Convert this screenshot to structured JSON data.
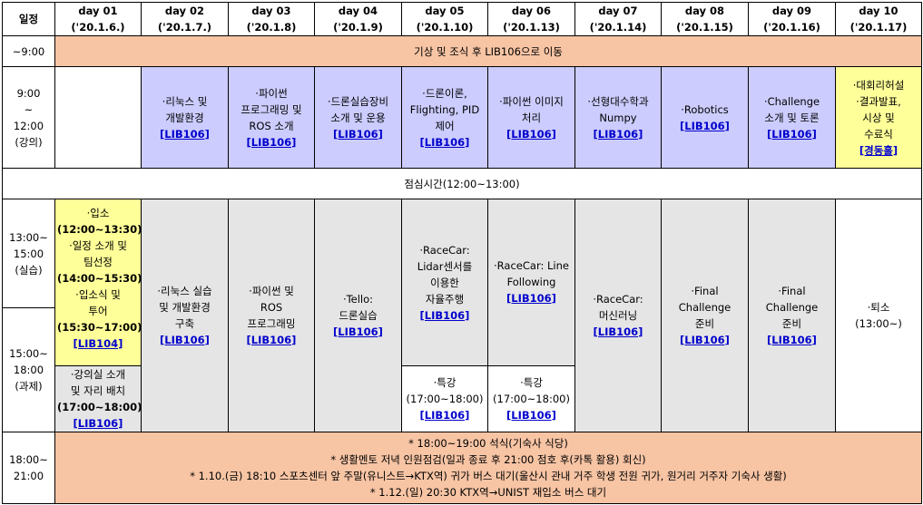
{
  "corner": "일정",
  "days": [
    {
      "day": "day 01",
      "date": "('20.1.6.)"
    },
    {
      "day": "day 02",
      "date": "('20.1.7.)"
    },
    {
      "day": "day 03",
      "date": "('20.1.8)"
    },
    {
      "day": "day 04",
      "date": "('20.1.9)"
    },
    {
      "day": "day 05",
      "date": "('20.1.10)"
    },
    {
      "day": "day 06",
      "date": "('20.1.13)"
    },
    {
      "day": "day 07",
      "date": "('20.1.14)"
    },
    {
      "day": "day 08",
      "date": "('20.1.15)"
    },
    {
      "day": "day 09",
      "date": "('20.1.16)"
    },
    {
      "day": "day 10",
      "date": "('20.1.17)"
    }
  ],
  "rows": {
    "wake": {
      "time": "~9:00",
      "text": "기상 및 조식 후 LIB106으로 이동"
    },
    "lecture": {
      "time": [
        "9:00",
        "~",
        "12:00",
        "(강의)"
      ],
      "cells": [
        {
          "lines": [],
          "room": ""
        },
        {
          "lines": [
            "·리눅스 및",
            "개발환경"
          ],
          "room": "[LIB106]"
        },
        {
          "lines": [
            "·파이썬",
            "프로그래밍 및",
            "ROS 소개"
          ],
          "room": "[LIB106]"
        },
        {
          "lines": [
            "·드론실습장비",
            "소개 및 운용"
          ],
          "room": "[LIB106]"
        },
        {
          "lines": [
            "·드론이론,",
            "Flighting, PID",
            "제어"
          ],
          "room": "[LIB106]"
        },
        {
          "lines": [
            "·파이썬 이미지",
            "처리"
          ],
          "room": "[LIB106]"
        },
        {
          "lines": [
            "·선형대수학과",
            "Numpy"
          ],
          "room": "[LIB106]"
        },
        {
          "lines": [
            "·Robotics"
          ],
          "room": "[LIB106]"
        },
        {
          "lines": [
            "·Challenge",
            "소개 및 토론"
          ],
          "room": "[LIB106]"
        },
        {
          "lines": [
            "·대회리허설",
            "·결과발표,",
            "시상 및",
            "수료식"
          ],
          "room": "[경동홀]"
        }
      ]
    },
    "lunch": {
      "text": "점심시간(12:00~13:00)"
    },
    "practice": {
      "time": [
        "13:00~",
        "15:00",
        "(실습)"
      ]
    },
    "homework": {
      "time": [
        "15:00~",
        "18:00",
        "(과제)"
      ]
    },
    "day01_practice": {
      "lines": [
        "·입소",
        "(12:00~13:30)",
        "·일정 소개 및",
        "팀선정",
        "(14:00~15:30)",
        "·입소식 및",
        "투어",
        "(15:30~17:00)"
      ],
      "room": "[LIB104]"
    },
    "day01_homework": {
      "lines": [
        "·강의실 소개",
        "및 자리 배치",
        "(17:00~18:00)"
      ],
      "room": "[LIB106]"
    },
    "afternoon": [
      {
        "lines": [
          "·리눅스 실습",
          "및 개발환경",
          "구축"
        ],
        "room": "[LIB106]"
      },
      {
        "lines": [
          "·파이썬 및",
          "ROS",
          "프로그래밍"
        ],
        "room": "[LIB106]"
      },
      {
        "lines": [
          "·Tello:",
          "드론실습"
        ],
        "room": "[LIB106]"
      },
      {
        "lines": [
          "·RaceCar:",
          "Lidar센서를",
          "이용한",
          "자율주행"
        ],
        "room": "[LIB106]"
      },
      {
        "lines": [
          "·RaceCar: Line",
          "Following"
        ],
        "room": "[LIB106]"
      },
      {
        "lines": [
          "·RaceCar:",
          "머신러닝"
        ],
        "room": "[LIB106]"
      },
      {
        "lines": [
          "·Final",
          "Challenge",
          "준비"
        ],
        "room": "[LIB106]"
      },
      {
        "lines": [
          "·Final",
          "Challenge",
          "준비"
        ],
        "room": "[LIB106]"
      }
    ],
    "special": [
      {
        "lines": [
          "·특강",
          "(17:00~18:00)"
        ],
        "room": "[LIB106]"
      },
      {
        "lines": [
          "·특강",
          "(17:00~18:00)"
        ],
        "room": "[LIB106]"
      }
    ],
    "day10_afternoon": {
      "lines": [
        "·퇴소",
        "(13:00~)"
      ]
    },
    "evening": {
      "time": [
        "18:00~",
        "21:00"
      ],
      "notes": [
        "* 18:00~19:00 석식(기숙사 식당)",
        "* 생활멘토 저녁 인원점검(일과 종료 후 21:00 점호 후(카톡 활용) 회신)",
        "* 1.10.(금) 18:10 스포츠센터 앞 주말(유니스트→KTX역) 귀가 버스 대기(울산시 관내 거주 학생 전원 귀가, 원거리 거주자 기숙사 생활)",
        "* 1.12.(일) 20:30 KTX역→UNIST 재입소 버스 대기"
      ]
    }
  },
  "colors": {
    "salmon": "#f7c4a4",
    "lavender": "#ccccff",
    "yellow": "#ffff99",
    "gray": "#e5e5e5",
    "room_text": "#0000cc"
  }
}
